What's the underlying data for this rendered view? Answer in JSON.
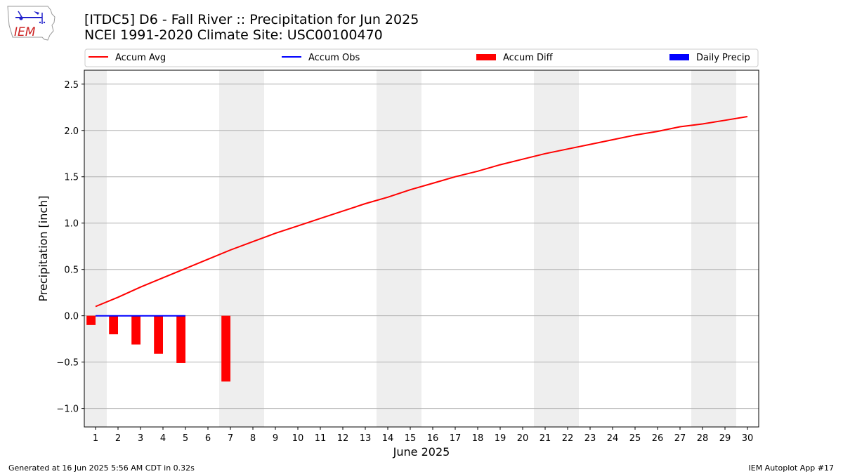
{
  "header": {
    "title_line1": "[ITDC5] D6 - Fall River  :: Precipitation for Jun 2025",
    "title_line2": "NCEI 1991-2020 Climate Site: USC00100470",
    "logo_text": "IEM"
  },
  "footer": {
    "generated": "Generated at 16 Jun 2025 5:56 AM CDT in 0.32s",
    "app": "IEM Autoplot App #17"
  },
  "colors": {
    "accum_avg": "#ff0000",
    "accum_obs": "#0000ff",
    "accum_diff": "#ff0000",
    "daily_precip": "#0000ff",
    "weekend_shade": "#eeeeee",
    "grid": "#b0b0b0"
  },
  "chart_data": {
    "type": "line",
    "title": "[ITDC5] D6 - Fall River  :: Precipitation for Jun 2025",
    "subtitle": "NCEI 1991-2020 Climate Site: USC00100470",
    "xlabel": "June 2025",
    "ylabel": "Precipitation [inch]",
    "xlim": [
      0.5,
      30.5
    ],
    "ylim": [
      -1.2,
      2.65
    ],
    "grid": true,
    "legend_position": "top",
    "x_ticks": [
      1,
      2,
      3,
      4,
      5,
      6,
      7,
      8,
      9,
      10,
      11,
      12,
      13,
      14,
      15,
      16,
      17,
      18,
      19,
      20,
      21,
      22,
      23,
      24,
      25,
      26,
      27,
      28,
      29,
      30
    ],
    "y_ticks": [
      -1.0,
      -0.5,
      0.0,
      0.5,
      1.0,
      1.5,
      2.0,
      2.5
    ],
    "y_tick_labels": [
      "−1.0",
      "−0.5",
      "0.0",
      "0.5",
      "1.0",
      "1.5",
      "2.0",
      "2.5"
    ],
    "weekend_shading": [
      [
        0.5,
        1.5
      ],
      [
        6.5,
        8.5
      ],
      [
        13.5,
        15.5
      ],
      [
        20.5,
        22.5
      ],
      [
        27.5,
        29.5
      ]
    ],
    "legend": [
      "Accum Avg",
      "Accum Obs",
      "Accum Diff",
      "Daily Precip"
    ],
    "series": [
      {
        "name": "Accum Avg",
        "kind": "line",
        "x": [
          1,
          2,
          3,
          4,
          5,
          6,
          7,
          8,
          9,
          10,
          11,
          12,
          13,
          14,
          15,
          16,
          17,
          18,
          19,
          20,
          21,
          22,
          23,
          24,
          25,
          26,
          27,
          28,
          29,
          30
        ],
        "values": [
          0.1,
          0.2,
          0.31,
          0.41,
          0.51,
          0.61,
          0.71,
          0.8,
          0.89,
          0.97,
          1.05,
          1.13,
          1.21,
          1.28,
          1.36,
          1.43,
          1.5,
          1.56,
          1.63,
          1.69,
          1.75,
          1.8,
          1.85,
          1.9,
          1.95,
          1.99,
          2.04,
          2.07,
          2.11,
          2.15
        ]
      },
      {
        "name": "Accum Obs",
        "kind": "line",
        "x": [
          1,
          2,
          3,
          4,
          5
        ],
        "values": [
          0.0,
          0.0,
          0.0,
          0.0,
          0.0
        ]
      },
      {
        "name": "Accum Diff",
        "kind": "bar",
        "x": [
          1,
          2,
          3,
          4,
          5,
          7
        ],
        "values": [
          -0.1,
          -0.2,
          -0.31,
          -0.41,
          -0.51,
          -0.71
        ]
      },
      {
        "name": "Daily Precip",
        "kind": "bar",
        "x": [
          1,
          2,
          3,
          4,
          5
        ],
        "values": [
          0,
          0,
          0,
          0,
          0
        ]
      }
    ]
  }
}
